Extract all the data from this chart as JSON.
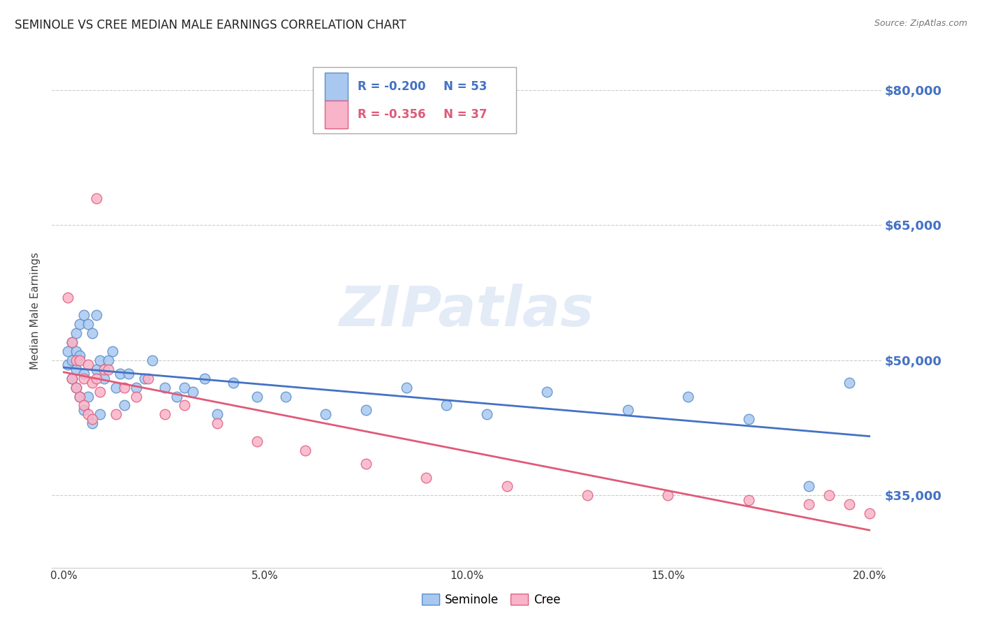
{
  "title": "SEMINOLE VS CREE MEDIAN MALE EARNINGS CORRELATION CHART",
  "source": "Source: ZipAtlas.com",
  "ylabel": "Median Male Earnings",
  "xlabel_ticks": [
    "0.0%",
    "5.0%",
    "10.0%",
    "15.0%",
    "20.0%"
  ],
  "xlabel_vals": [
    0.0,
    0.05,
    0.1,
    0.15,
    0.2
  ],
  "ytick_labels": [
    "$35,000",
    "$50,000",
    "$65,000",
    "$80,000"
  ],
  "ytick_vals": [
    35000,
    50000,
    65000,
    80000
  ],
  "ylim": [
    27000,
    84000
  ],
  "xlim": [
    -0.003,
    0.203
  ],
  "seminole_color": "#a8c8f0",
  "cree_color": "#f8b4c8",
  "seminole_edge": "#5b8ec9",
  "cree_edge": "#e06080",
  "trend_seminole_color": "#4472c4",
  "trend_cree_color": "#e05a78",
  "legend_r_seminole": "R = -0.200",
  "legend_n_seminole": "N = 53",
  "legend_r_cree": "R = -0.356",
  "legend_n_cree": "N = 37",
  "watermark": "ZIPatlas",
  "grid_color": "#cccccc",
  "background": "#ffffff",
  "seminole_x": [
    0.001,
    0.001,
    0.002,
    0.002,
    0.002,
    0.003,
    0.003,
    0.003,
    0.003,
    0.004,
    0.004,
    0.004,
    0.005,
    0.005,
    0.005,
    0.006,
    0.006,
    0.007,
    0.007,
    0.008,
    0.008,
    0.009,
    0.009,
    0.01,
    0.011,
    0.012,
    0.013,
    0.014,
    0.015,
    0.016,
    0.018,
    0.02,
    0.022,
    0.025,
    0.028,
    0.03,
    0.032,
    0.035,
    0.038,
    0.042,
    0.048,
    0.055,
    0.065,
    0.075,
    0.085,
    0.095,
    0.105,
    0.12,
    0.14,
    0.155,
    0.17,
    0.185,
    0.195
  ],
  "seminole_y": [
    51000,
    49500,
    52000,
    50000,
    48000,
    53000,
    51000,
    49000,
    47000,
    54000,
    50500,
    46000,
    55000,
    48500,
    44500,
    54000,
    46000,
    53000,
    43000,
    55000,
    49000,
    50000,
    44000,
    48000,
    50000,
    51000,
    47000,
    48500,
    45000,
    48500,
    47000,
    48000,
    50000,
    47000,
    46000,
    47000,
    46500,
    48000,
    44000,
    47500,
    46000,
    46000,
    44000,
    44500,
    47000,
    45000,
    44000,
    46500,
    44500,
    46000,
    43500,
    36000,
    47500
  ],
  "cree_x": [
    0.001,
    0.002,
    0.002,
    0.003,
    0.003,
    0.004,
    0.004,
    0.005,
    0.005,
    0.006,
    0.006,
    0.007,
    0.007,
    0.008,
    0.008,
    0.009,
    0.01,
    0.011,
    0.013,
    0.015,
    0.018,
    0.021,
    0.025,
    0.03,
    0.038,
    0.048,
    0.06,
    0.075,
    0.09,
    0.11,
    0.13,
    0.15,
    0.17,
    0.185,
    0.19,
    0.195,
    0.2
  ],
  "cree_y": [
    57000,
    52000,
    48000,
    50000,
    47000,
    50000,
    46000,
    48000,
    45000,
    49500,
    44000,
    47500,
    43500,
    68000,
    48000,
    46500,
    49000,
    49000,
    44000,
    47000,
    46000,
    48000,
    44000,
    45000,
    43000,
    41000,
    40000,
    38500,
    37000,
    36000,
    35000,
    35000,
    34500,
    34000,
    35000,
    34000,
    33000
  ],
  "title_color": "#222222",
  "ytick_color": "#4472c4",
  "source_color": "#777777"
}
